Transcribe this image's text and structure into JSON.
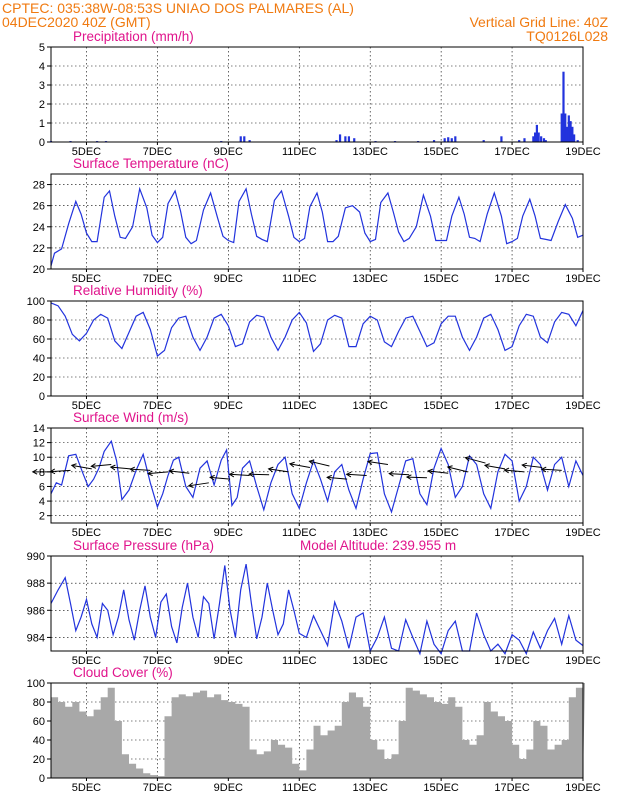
{
  "header": {
    "line1_left": "CPTEC:   035:38W-08:53S   UNIAO DOS PALMARES (AL)",
    "line2_left": "04DEC2020 40Z (GMT)",
    "line2_right": "Vertical Grid Line: 40Z",
    "line3_right": "TQ0126L028"
  },
  "colors": {
    "header": "#f07a10",
    "panel_title": "#e0148c",
    "series": "#2233dd",
    "cloud_fill": "#a8a8a8",
    "arrows": "#000000"
  },
  "x_axis": {
    "tick_labels": [
      "5DEC",
      "7DEC",
      "9DEC",
      "11DEC",
      "13DEC",
      "15DEC",
      "17DEC",
      "19DEC"
    ],
    "tick_days": [
      5,
      7,
      9,
      11,
      13,
      15,
      17,
      19
    ],
    "range_days": [
      4,
      19
    ]
  },
  "chart_data": [
    {
      "type": "bar",
      "title": "Precipitation (mm/h)",
      "ylim": [
        0,
        5
      ],
      "yticks": [
        0,
        1,
        2,
        3,
        4,
        5
      ],
      "grid": true,
      "x": [
        4.0,
        4.55,
        5.3,
        5.55,
        8.8,
        9.35,
        9.45,
        9.6,
        12.05,
        12.15,
        12.3,
        12.4,
        12.55,
        13.15,
        13.7,
        14.35,
        14.8,
        15.1,
        15.2,
        15.3,
        15.4,
        16.2,
        16.7,
        17.2,
        17.35,
        17.6,
        17.65,
        17.7,
        17.75,
        17.82,
        17.9,
        17.95,
        18.4,
        18.45,
        18.5,
        18.55,
        18.6,
        18.65,
        18.7,
        18.75,
        18.85
      ],
      "values": [
        0.05,
        0.05,
        0.05,
        0.05,
        0.05,
        0.3,
        0.3,
        0.1,
        0.1,
        0.4,
        0.3,
        0.3,
        0.2,
        0.05,
        0.05,
        0.05,
        0.1,
        0.2,
        0.25,
        0.2,
        0.3,
        0.1,
        0.3,
        0.1,
        0.2,
        0.3,
        0.5,
        0.9,
        0.5,
        0.3,
        0.2,
        0.1,
        1.5,
        3.7,
        1.5,
        0.8,
        1.4,
        1.1,
        0.8,
        0.4,
        0.1
      ]
    },
    {
      "type": "line",
      "title": "Surface Temperature (nC)",
      "ylim": [
        20,
        29
      ],
      "yticks": [
        20,
        22,
        24,
        26,
        28
      ],
      "grid": true,
      "series": [
        {
          "x": [
            4.0,
            4.1,
            4.3,
            4.5,
            4.7,
            4.85,
            5.0,
            5.15,
            5.3,
            5.5,
            5.65,
            5.8,
            5.95,
            6.1,
            6.3,
            6.5,
            6.7,
            6.85,
            7.0,
            7.15,
            7.3,
            7.5,
            7.65,
            7.8,
            7.95,
            8.1,
            8.3,
            8.5,
            8.7,
            8.85,
            9.0,
            9.15,
            9.3,
            9.5,
            9.65,
            9.8,
            9.95,
            10.1,
            10.3,
            10.5,
            10.7,
            10.85,
            11.0,
            11.15,
            11.3,
            11.5,
            11.65,
            11.8,
            11.95,
            12.1,
            12.3,
            12.5,
            12.7,
            12.85,
            13.0,
            13.15,
            13.3,
            13.5,
            13.65,
            13.8,
            13.95,
            14.1,
            14.3,
            14.5,
            14.7,
            14.85,
            15.0,
            15.15,
            15.3,
            15.5,
            15.65,
            15.8,
            15.95,
            16.1,
            16.3,
            16.5,
            16.7,
            16.85,
            17.0,
            17.15,
            17.3,
            17.5,
            17.65,
            17.8,
            17.95,
            18.1,
            18.3,
            18.5,
            18.7,
            18.85,
            19.0
          ],
          "values": [
            20.3,
            21.5,
            21.9,
            24.3,
            26.4,
            25.2,
            23.4,
            22.6,
            22.6,
            26.8,
            27.4,
            25.0,
            23.0,
            22.9,
            24.0,
            27.6,
            25.8,
            23.2,
            22.5,
            23.0,
            26.2,
            27.4,
            25.5,
            23.0,
            22.4,
            22.7,
            25.6,
            27.2,
            24.8,
            23.1,
            22.7,
            22.5,
            26.4,
            27.6,
            25.2,
            23.1,
            22.8,
            22.6,
            26.5,
            27.4,
            25.0,
            23.0,
            22.6,
            22.9,
            25.9,
            27.2,
            25.4,
            22.6,
            22.6,
            23.1,
            25.8,
            26.0,
            25.4,
            23.4,
            22.6,
            22.8,
            26.3,
            27.2,
            25.4,
            23.5,
            22.6,
            22.9,
            24.0,
            27.0,
            25.0,
            22.7,
            22.7,
            22.7,
            25.0,
            26.8,
            25.2,
            23.0,
            22.9,
            22.6,
            25.2,
            27.2,
            25.0,
            22.4,
            22.6,
            22.9,
            25.0,
            26.6,
            25.0,
            22.9,
            22.8,
            22.7,
            24.5,
            26.1,
            24.8,
            23.0,
            23.2
          ]
        }
      ]
    },
    {
      "type": "line",
      "title": "Relative Humidity (%)",
      "ylim": [
        0,
        100
      ],
      "yticks": [
        0,
        20,
        40,
        60,
        80,
        100
      ],
      "grid": true,
      "series": [
        {
          "x": [
            4.0,
            4.2,
            4.4,
            4.6,
            4.8,
            5.0,
            5.2,
            5.4,
            5.6,
            5.8,
            6.0,
            6.2,
            6.4,
            6.6,
            6.8,
            7.0,
            7.2,
            7.4,
            7.6,
            7.8,
            8.0,
            8.2,
            8.4,
            8.6,
            8.8,
            9.0,
            9.2,
            9.4,
            9.6,
            9.8,
            10.0,
            10.2,
            10.4,
            10.6,
            10.8,
            11.0,
            11.2,
            11.4,
            11.6,
            11.8,
            12.0,
            12.2,
            12.4,
            12.6,
            12.8,
            13.0,
            13.2,
            13.4,
            13.6,
            13.8,
            14.0,
            14.2,
            14.4,
            14.6,
            14.8,
            15.0,
            15.2,
            15.4,
            15.6,
            15.8,
            16.0,
            16.2,
            16.4,
            16.6,
            16.8,
            17.0,
            17.2,
            17.4,
            17.6,
            17.8,
            18.0,
            18.2,
            18.4,
            18.6,
            18.8,
            19.0
          ],
          "values": [
            98,
            95,
            84,
            65,
            58,
            66,
            80,
            86,
            82,
            58,
            50,
            67,
            84,
            88,
            70,
            42,
            48,
            72,
            82,
            84,
            62,
            48,
            62,
            82,
            86,
            74,
            52,
            55,
            78,
            85,
            83,
            62,
            48,
            62,
            80,
            88,
            77,
            47,
            55,
            80,
            85,
            82,
            52,
            52,
            76,
            84,
            80,
            57,
            52,
            68,
            82,
            84,
            68,
            52,
            56,
            76,
            84,
            84,
            62,
            48,
            62,
            82,
            86,
            70,
            48,
            52,
            74,
            86,
            84,
            62,
            56,
            78,
            88,
            86,
            74,
            90
          ]
        }
      ]
    },
    {
      "type": "line",
      "title": "Surface Wind (m/s)",
      "ylim": [
        1,
        14
      ],
      "yticks": [
        2,
        4,
        6,
        8,
        10,
        12,
        14
      ],
      "grid": true,
      "wind_barbs": "direction arrows shown along series",
      "series": [
        {
          "x": [
            4.0,
            4.15,
            4.3,
            4.5,
            4.7,
            4.9,
            5.05,
            5.2,
            5.35,
            5.5,
            5.7,
            5.85,
            6.0,
            6.2,
            6.4,
            6.6,
            6.8,
            7.0,
            7.15,
            7.3,
            7.45,
            7.6,
            7.8,
            8.0,
            8.2,
            8.4,
            8.6,
            8.8,
            8.95,
            9.1,
            9.25,
            9.4,
            9.6,
            9.8,
            10.0,
            10.2,
            10.4,
            10.6,
            10.8,
            11.0,
            11.2,
            11.4,
            11.6,
            11.8,
            12.0,
            12.2,
            12.4,
            12.6,
            12.8,
            13.0,
            13.2,
            13.4,
            13.6,
            13.8,
            14.0,
            14.2,
            14.4,
            14.6,
            14.8,
            15.0,
            15.2,
            15.4,
            15.6,
            15.8,
            16.0,
            16.2,
            16.4,
            16.6,
            16.8,
            17.0,
            17.2,
            17.4,
            17.6,
            17.8,
            18.0,
            18.2,
            18.4,
            18.6,
            18.8,
            19.0
          ],
          "values": [
            5.0,
            6.5,
            6.2,
            10.2,
            10.4,
            7.8,
            6.0,
            7.0,
            8.5,
            10.8,
            12.2,
            9.5,
            4.2,
            5.5,
            8.2,
            10.4,
            6.5,
            3.2,
            5.0,
            7.5,
            9.6,
            10.0,
            6.0,
            4.5,
            8.5,
            9.5,
            6.2,
            9.6,
            11.0,
            3.4,
            4.5,
            8.5,
            9.5,
            6.0,
            2.8,
            6.5,
            9.0,
            10.0,
            5.0,
            3.0,
            6.5,
            9.5,
            7.0,
            4.0,
            8.0,
            9.0,
            5.5,
            3.0,
            7.0,
            10.5,
            10.6,
            5.0,
            2.5,
            6.0,
            9.5,
            9.8,
            5.0,
            3.5,
            8.5,
            11.2,
            9.0,
            4.5,
            6.0,
            10.2,
            9.0,
            5.0,
            3.0,
            8.0,
            10.4,
            9.5,
            4.0,
            6.0,
            10.0,
            9.0,
            5.5,
            9.0,
            10.0,
            6.0,
            9.5,
            7.5
          ]
        }
      ]
    },
    {
      "type": "line",
      "title": "Surface Pressure (hPa)",
      "subtitle": "Model Altitude: 239.955 m",
      "ylim": [
        983,
        990
      ],
      "yticks": [
        984,
        986,
        988,
        990
      ],
      "grid": true,
      "series": [
        {
          "x": [
            4.0,
            4.2,
            4.4,
            4.55,
            4.7,
            4.85,
            5.0,
            5.15,
            5.3,
            5.45,
            5.6,
            5.75,
            5.9,
            6.05,
            6.2,
            6.35,
            6.5,
            6.65,
            6.8,
            6.95,
            7.1,
            7.25,
            7.4,
            7.55,
            7.7,
            7.85,
            8.0,
            8.15,
            8.3,
            8.45,
            8.6,
            8.75,
            8.9,
            9.05,
            9.2,
            9.35,
            9.5,
            9.65,
            9.8,
            9.95,
            10.1,
            10.25,
            10.4,
            10.55,
            10.7,
            10.85,
            11.0,
            11.2,
            11.4,
            11.6,
            11.8,
            12.0,
            12.2,
            12.4,
            12.6,
            12.8,
            13.0,
            13.2,
            13.4,
            13.6,
            13.8,
            14.0,
            14.2,
            14.4,
            14.6,
            14.8,
            15.0,
            15.2,
            15.4,
            15.6,
            15.8,
            16.0,
            16.2,
            16.4,
            16.6,
            16.8,
            17.0,
            17.2,
            17.4,
            17.6,
            17.8,
            18.0,
            18.2,
            18.4,
            18.6,
            18.8,
            19.0
          ],
          "values": [
            986.5,
            987.5,
            988.4,
            986.5,
            984.5,
            985.5,
            986.8,
            985.0,
            984.0,
            986.5,
            986.0,
            984.2,
            985.5,
            987.5,
            985.3,
            983.8,
            986.0,
            987.8,
            985.5,
            984.0,
            986.6,
            987.2,
            984.8,
            983.6,
            986.2,
            988.0,
            985.5,
            984.0,
            987.0,
            986.5,
            983.9,
            986.5,
            989.3,
            986.0,
            984.0,
            987.5,
            989.4,
            986.5,
            983.9,
            985.5,
            988.0,
            986.0,
            984.2,
            985.0,
            987.5,
            986.0,
            984.3,
            984.0,
            985.6,
            984.5,
            983.4,
            986.6,
            985.2,
            983.2,
            985.5,
            985.8,
            983.0,
            984.0,
            985.5,
            983.2,
            983.0,
            985.3,
            984.0,
            982.8,
            985.2,
            983.5,
            982.8,
            984.5,
            985.2,
            983.0,
            983.0,
            985.8,
            984.2,
            983.0,
            983.5,
            982.8,
            984.2,
            983.8,
            982.8,
            984.4,
            983.2,
            984.5,
            985.4,
            983.5,
            985.6,
            983.8,
            983.4
          ]
        }
      ]
    },
    {
      "type": "area",
      "title": "Cloud Cover (%)",
      "ylim": [
        0,
        100
      ],
      "yticks": [
        0,
        20,
        40,
        60,
        80,
        100
      ],
      "grid": true,
      "series": [
        {
          "x": [
            4.0,
            4.2,
            4.4,
            4.6,
            4.8,
            5.0,
            5.2,
            5.4,
            5.6,
            5.8,
            6.0,
            6.2,
            6.4,
            6.6,
            6.8,
            7.0,
            7.2,
            7.4,
            7.6,
            7.8,
            8.0,
            8.2,
            8.4,
            8.6,
            8.8,
            9.0,
            9.2,
            9.4,
            9.6,
            9.8,
            10.0,
            10.2,
            10.4,
            10.6,
            10.8,
            11.0,
            11.2,
            11.4,
            11.6,
            11.8,
            12.0,
            12.2,
            12.4,
            12.6,
            12.8,
            13.0,
            13.2,
            13.4,
            13.6,
            13.8,
            14.0,
            14.2,
            14.4,
            14.6,
            14.8,
            15.0,
            15.2,
            15.4,
            15.6,
            15.8,
            16.0,
            16.2,
            16.4,
            16.6,
            16.8,
            17.0,
            17.2,
            17.4,
            17.6,
            17.8,
            18.0,
            18.2,
            18.4,
            18.6,
            18.8,
            19.0
          ],
          "values": [
            85,
            80,
            75,
            80,
            70,
            65,
            72,
            85,
            95,
            60,
            25,
            15,
            10,
            5,
            3,
            2,
            65,
            85,
            88,
            86,
            90,
            92,
            85,
            88,
            82,
            80,
            78,
            75,
            30,
            25,
            28,
            40,
            35,
            32,
            15,
            8,
            30,
            55,
            45,
            50,
            55,
            80,
            90,
            85,
            75,
            40,
            30,
            20,
            25,
            60,
            95,
            92,
            88,
            85,
            80,
            78,
            85,
            75,
            40,
            35,
            45,
            80,
            70,
            65,
            60,
            35,
            20,
            30,
            60,
            55,
            30,
            35,
            40,
            85,
            95,
            100
          ]
        }
      ]
    }
  ]
}
